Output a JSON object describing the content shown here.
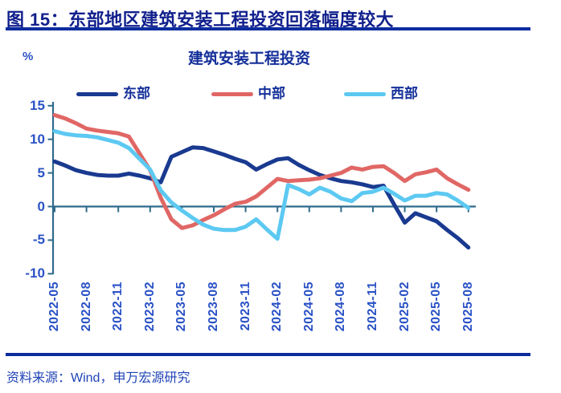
{
  "header": {
    "title": "图 15：东部地区建筑安装工程投资回落幅度较大"
  },
  "footer": {
    "source": "资料来源：Wind，申万宏源研究"
  },
  "colors": {
    "title_navy": "#111f8c",
    "rule_blue": "#0c2c9e",
    "tick_label_blue": "#2a52c6",
    "axis_teal": "#2f6b8c",
    "east_line": "#1a3a90",
    "center_line": "#e06765",
    "west_line": "#5cc9f2"
  },
  "chart_data": {
    "type": "line",
    "title": "建筑安装工程投资",
    "unit": "%",
    "ylabel": "%",
    "xlabel": "",
    "grid": false,
    "legend_position": "top",
    "ylim": [
      -10,
      15
    ],
    "y_ticks": [
      15,
      10,
      5,
      0,
      -5,
      -10
    ],
    "x": [
      "2022-05",
      "2022-06",
      "2022-07",
      "2022-08",
      "2022-09",
      "2022-10",
      "2022-11",
      "2022-12",
      "2023-01",
      "2023-02",
      "2023-03",
      "2023-04",
      "2023-05",
      "2023-06",
      "2023-07",
      "2023-08",
      "2023-09",
      "2023-10",
      "2023-11",
      "2023-12",
      "2024-01",
      "2024-02",
      "2024-03",
      "2024-04",
      "2024-05",
      "2024-06",
      "2024-07",
      "2024-08",
      "2024-09",
      "2024-10",
      "2024-11",
      "2024-12",
      "2025-01",
      "2025-02",
      "2025-03",
      "2025-04",
      "2025-05",
      "2025-06",
      "2025-07",
      "2025-08"
    ],
    "x_tick_every": 3,
    "x_tick_labels": [
      "2022-05",
      "2022-08",
      "2022-11",
      "2023-02",
      "2023-05",
      "2023-08",
      "2023-11",
      "2024-02",
      "2024-05",
      "2024-08",
      "2024-11",
      "2025-02",
      "2025-05",
      "2025-08"
    ],
    "series": [
      {
        "key": "east",
        "name": "东部",
        "color": "#1a3a90",
        "values": [
          6.7,
          6.1,
          5.4,
          5.0,
          4.7,
          4.6,
          4.6,
          4.9,
          4.6,
          4.2,
          3.6,
          7.4,
          8.1,
          8.8,
          8.7,
          8.2,
          7.7,
          7.1,
          6.6,
          5.5,
          6.3,
          7.0,
          7.2,
          6.2,
          5.4,
          4.7,
          4.2,
          3.8,
          3.6,
          3.3,
          2.9,
          3.1,
          0.3,
          -2.4,
          -1.0,
          -1.6,
          -2.2,
          -3.5,
          -4.7,
          -6.1
        ]
      },
      {
        "key": "center",
        "name": "中部",
        "color": "#e06765",
        "values": [
          13.6,
          13.1,
          12.4,
          11.6,
          11.3,
          11.1,
          10.9,
          10.4,
          7.9,
          5.4,
          1.3,
          -1.9,
          -3.2,
          -2.8,
          -2.0,
          -1.3,
          -0.4,
          0.4,
          0.7,
          1.5,
          2.8,
          4.1,
          3.8,
          3.9,
          4.0,
          4.2,
          4.6,
          5.0,
          5.8,
          5.5,
          5.9,
          6.0,
          5.0,
          3.8,
          4.8,
          5.1,
          5.5,
          4.2,
          3.3,
          2.5
        ]
      },
      {
        "key": "west",
        "name": "西部",
        "color": "#5cc9f2",
        "values": [
          11.2,
          10.8,
          10.6,
          10.5,
          10.3,
          9.9,
          9.5,
          8.7,
          7.1,
          5.5,
          2.4,
          0.6,
          -0.6,
          -1.7,
          -2.7,
          -3.3,
          -3.5,
          -3.5,
          -3.0,
          -1.9,
          -3.4,
          -4.8,
          3.2,
          2.6,
          1.8,
          2.8,
          2.2,
          1.2,
          0.8,
          2.0,
          2.2,
          2.8,
          1.9,
          0.9,
          1.6,
          1.6,
          2.0,
          1.8,
          0.9,
          -0.2
        ]
      }
    ]
  }
}
